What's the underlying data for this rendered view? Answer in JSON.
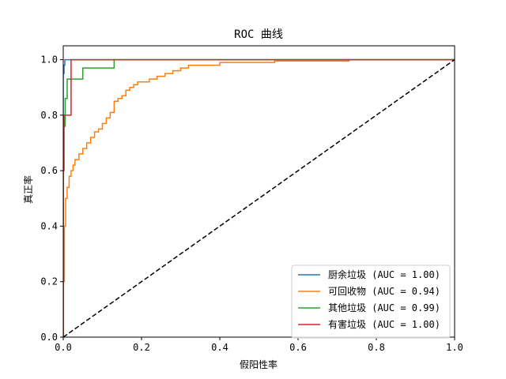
{
  "chart_data": {
    "type": "line",
    "title": "ROC 曲线",
    "xlabel": "假阳性率",
    "ylabel": "真正率",
    "xlim": [
      0,
      1
    ],
    "ylim": [
      0,
      1.05
    ],
    "x_ticks": [
      "0.0",
      "0.2",
      "0.4",
      "0.6",
      "0.8",
      "1.0"
    ],
    "y_ticks": [
      "0.0",
      "0.2",
      "0.4",
      "0.6",
      "0.8",
      "1.0"
    ],
    "x_tick_values": [
      0,
      0.2,
      0.4,
      0.6,
      0.8,
      1.0
    ],
    "y_tick_values": [
      0,
      0.2,
      0.4,
      0.6,
      0.8,
      1.0
    ],
    "grid": false,
    "legend_position": "lower-right",
    "series": [
      {
        "name": "厨余垃圾 (AUC = 1.00)",
        "color": "#1f77b4",
        "x": [
          0,
          0,
          0.002,
          0.002,
          0.004,
          0.004,
          1.0
        ],
        "y": [
          0,
          0.95,
          0.95,
          0.98,
          0.98,
          1.0,
          1.0
        ]
      },
      {
        "name": "可回收物 (AUC = 0.94)",
        "color": "#ff7f0e",
        "x": [
          0,
          0,
          0.003,
          0.003,
          0.006,
          0.006,
          0.01,
          0.01,
          0.015,
          0.015,
          0.02,
          0.02,
          0.025,
          0.025,
          0.03,
          0.03,
          0.04,
          0.04,
          0.05,
          0.05,
          0.06,
          0.06,
          0.07,
          0.07,
          0.08,
          0.08,
          0.09,
          0.09,
          0.1,
          0.1,
          0.11,
          0.11,
          0.12,
          0.12,
          0.13,
          0.13,
          0.14,
          0.14,
          0.15,
          0.15,
          0.16,
          0.16,
          0.17,
          0.17,
          0.18,
          0.18,
          0.19,
          0.19,
          0.2,
          0.2,
          0.22,
          0.22,
          0.24,
          0.24,
          0.26,
          0.26,
          0.28,
          0.28,
          0.3,
          0.3,
          0.32,
          0.32,
          0.36,
          0.36,
          0.4,
          0.4,
          0.46,
          0.46,
          0.54,
          0.54,
          0.73,
          0.73,
          1.0
        ],
        "y": [
          0,
          0.2,
          0.2,
          0.4,
          0.4,
          0.5,
          0.5,
          0.54,
          0.54,
          0.58,
          0.58,
          0.6,
          0.6,
          0.62,
          0.62,
          0.64,
          0.64,
          0.66,
          0.66,
          0.68,
          0.68,
          0.7,
          0.7,
          0.72,
          0.72,
          0.74,
          0.74,
          0.75,
          0.75,
          0.77,
          0.77,
          0.79,
          0.79,
          0.81,
          0.81,
          0.85,
          0.85,
          0.86,
          0.86,
          0.87,
          0.87,
          0.89,
          0.89,
          0.9,
          0.9,
          0.91,
          0.91,
          0.92,
          0.92,
          0.92,
          0.92,
          0.93,
          0.93,
          0.94,
          0.94,
          0.95,
          0.95,
          0.96,
          0.96,
          0.97,
          0.97,
          0.98,
          0.98,
          0.98,
          0.98,
          0.99,
          0.99,
          0.99,
          0.99,
          0.995,
          0.995,
          1.0,
          1.0
        ]
      },
      {
        "name": "其他垃圾 (AUC = 0.99)",
        "color": "#2ca02c",
        "x": [
          0,
          0,
          0.005,
          0.005,
          0.01,
          0.01,
          0.05,
          0.05,
          0.13,
          0.13,
          1.0
        ],
        "y": [
          0,
          0.76,
          0.76,
          0.86,
          0.86,
          0.93,
          0.93,
          0.97,
          0.97,
          1.0,
          1.0
        ]
      },
      {
        "name": "有害垃圾 (AUC = 1.00)",
        "color": "#d62728",
        "x": [
          0,
          0,
          0.002,
          0.002,
          0.02,
          0.02,
          1.0
        ],
        "y": [
          0,
          0.6,
          0.6,
          0.8,
          0.8,
          1.0,
          1.0
        ]
      },
      {
        "name": "",
        "color": "#000000",
        "dashed": true,
        "x": [
          0,
          1
        ],
        "y": [
          0,
          1
        ]
      }
    ]
  }
}
